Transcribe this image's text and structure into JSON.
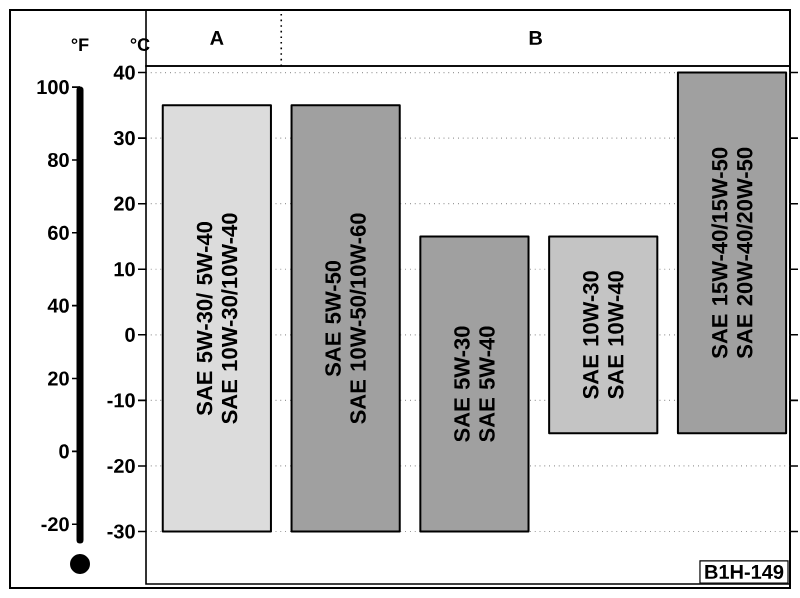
{
  "chart_data": {
    "type": "bar",
    "categories": [
      "SAE 5W-30/ 5W-40 SAE 10W-30/10W-40",
      "SAE 5W-50 SAE 10W-50/10W-60",
      "SAE 5W-30 SAE 5W-40",
      "SAE 10W-30 SAE 10W-40",
      "SAE 15W-40/15W-50 SAE 20W-40/20W-50"
    ],
    "base": [
      -30,
      -30,
      -30,
      -15,
      -15
    ],
    "values": [
      65,
      65,
      45,
      30,
      55
    ],
    "colors": [
      "#dcdcdc",
      "#a0a0a0",
      "#a0a0a0",
      "#c4c4c4",
      "#a0a0a0"
    ],
    "ylabel": "°C",
    "y2label": "°F",
    "ylim": [
      -38,
      41
    ],
    "yticks": [
      -30,
      -20,
      -10,
      0,
      10,
      20,
      30,
      40
    ],
    "y2lim": [
      -36.4,
      105.8
    ],
    "y2ticks": [
      -20,
      0,
      20,
      40,
      60,
      80,
      100
    ],
    "grid": "y",
    "annotations": [
      "A",
      "B",
      "B1H-149"
    ]
  }
}
